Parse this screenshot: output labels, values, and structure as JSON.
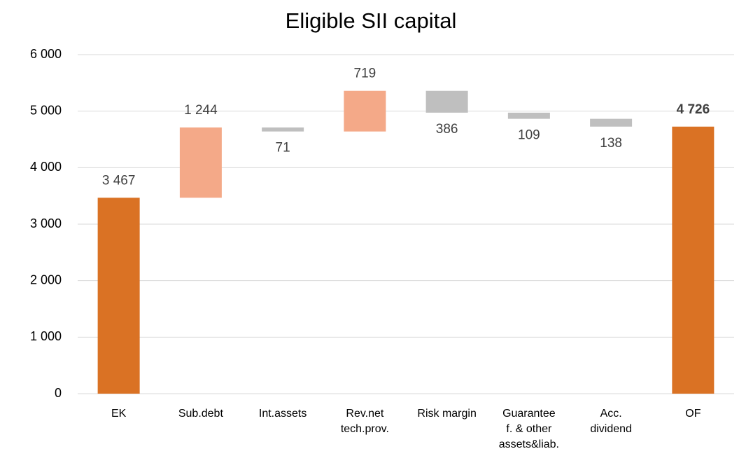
{
  "chart_data": {
    "type": "waterfall",
    "title": "Eligible SII capital",
    "categories": [
      "EK",
      "Sub.debt",
      "Int.assets",
      "Rev.net\ntech.prov.",
      "Risk margin",
      "Guarantee\nf. & other\nassets&liab.",
      "Acc.\ndividend",
      "OF"
    ],
    "values": [
      3467,
      1244,
      71,
      719,
      386,
      109,
      138,
      4726
    ],
    "value_labels": [
      "3 467",
      "1 244",
      "71",
      "719",
      "386",
      "109",
      "138",
      "4 726"
    ],
    "measures": [
      "total",
      "increase",
      "decrease",
      "increase",
      "decrease",
      "decrease",
      "decrease",
      "total"
    ],
    "colors": {
      "total": "#DA7224",
      "increase": "#F4A988",
      "decrease": "#BFBFBF"
    },
    "ylim": [
      0,
      6000
    ],
    "yticks": [
      0,
      {
        "value": 1000,
        "label": "1 000"
      },
      {
        "value": 2000,
        "label": "2 000"
      },
      {
        "value": 3000,
        "label": "3 000"
      },
      {
        "value": 4000,
        "label": "4 000"
      },
      {
        "value": 5000,
        "label": "5 000"
      },
      {
        "value": 6000,
        "label": "6 000"
      }
    ],
    "grid": true
  }
}
